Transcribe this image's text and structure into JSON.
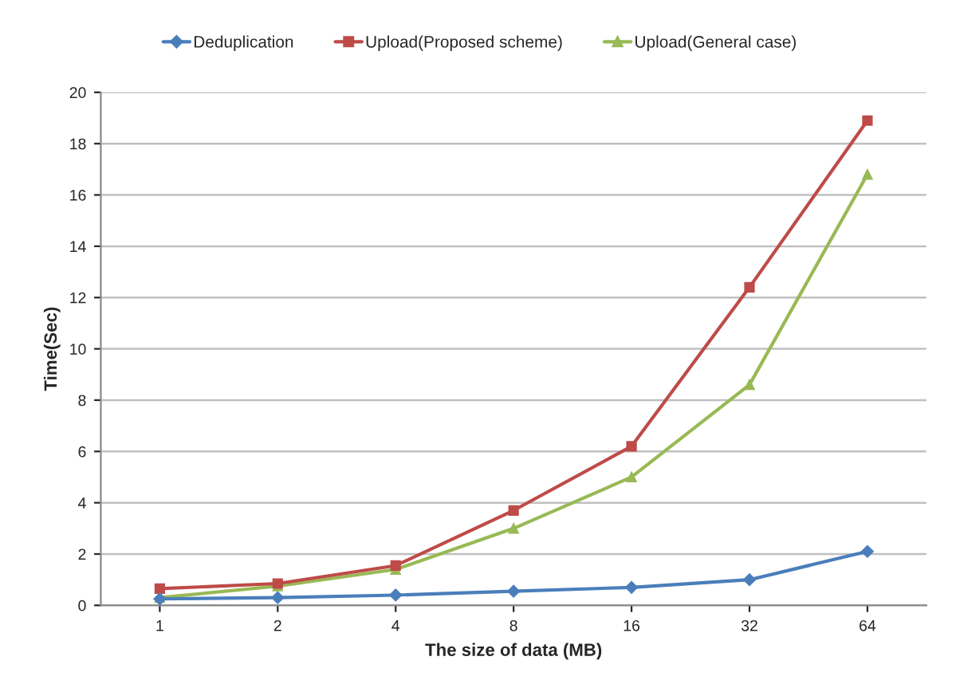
{
  "chart_data": {
    "type": "line",
    "xlabel": "The size of data (MB)",
    "ylabel": "Time(Sec)",
    "categories": [
      "1",
      "2",
      "4",
      "8",
      "16",
      "32",
      "64"
    ],
    "series": [
      {
        "name": "Deduplication",
        "color": "#4a7ebb",
        "marker": "diamond",
        "values": [
          0.25,
          0.3,
          0.4,
          0.55,
          0.7,
          1.0,
          2.1
        ]
      },
      {
        "name": "Upload(Proposed scheme)",
        "color": "#be4b48",
        "marker": "square",
        "values": [
          0.65,
          0.85,
          1.55,
          3.7,
          6.2,
          12.4,
          18.9
        ]
      },
      {
        "name": "Upload(General case)",
        "color": "#98b954",
        "marker": "triangle",
        "values": [
          0.3,
          0.75,
          1.4,
          3.0,
          5.0,
          8.6,
          16.8
        ]
      }
    ],
    "ylim": [
      0,
      20
    ],
    "yticks": [
      0,
      2,
      4,
      6,
      8,
      10,
      12,
      14,
      16,
      18,
      20
    ],
    "grid": "y",
    "legend": "top"
  }
}
